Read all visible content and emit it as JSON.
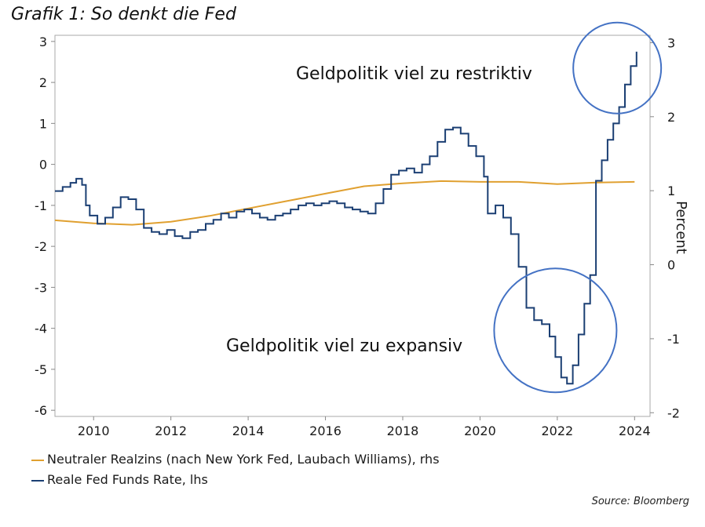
{
  "title": "Grafik 1: So denkt die Fed",
  "source": "Source: Bloomberg",
  "colors": {
    "neutral_rate": "#E0A030",
    "fed_funds": "#1B3F73",
    "circles": "#4472C4",
    "frame": "#aaaaaa"
  },
  "chart_data": {
    "type": "line",
    "x_ticks": [
      "2010",
      "2012",
      "2014",
      "2016",
      "2018",
      "2020",
      "2022",
      "2024"
    ],
    "x_tick_values": [
      2010,
      2012,
      2014,
      2016,
      2018,
      2020,
      2022,
      2024
    ],
    "xlim": [
      2009.0,
      2024.4
    ],
    "left_axis": {
      "ticks": [
        "3",
        "2",
        "1",
        "0",
        "-1",
        "-2",
        "-3",
        "-4",
        "-5",
        "-6"
      ],
      "tick_values": [
        3,
        2,
        1,
        0,
        -1,
        -2,
        -3,
        -4,
        -5,
        -6
      ],
      "ylim": [
        -6.15,
        3.15
      ]
    },
    "right_axis": {
      "label": "Percent",
      "ticks": [
        "3",
        "2",
        "1",
        "0",
        "-1",
        "-2"
      ],
      "tick_values": [
        3,
        2,
        1,
        0,
        -1,
        -2
      ],
      "ylim": [
        -2.05,
        3.1
      ]
    },
    "annotations": [
      "Geldpolitik viel zu restriktiv",
      "Geldpolitik viel zu expansiv"
    ],
    "series": [
      {
        "name": "Neutraler Realzins (nach New York Fed, Laubach Williams), rhs",
        "axis": "right",
        "x": [
          2009.0,
          2010.0,
          2011.0,
          2012.0,
          2013.0,
          2014.0,
          2015.0,
          2016.0,
          2017.0,
          2018.0,
          2019.0,
          2020.0,
          2021.0,
          2022.0,
          2023.0,
          2024.0
        ],
        "y": [
          0.6,
          0.56,
          0.54,
          0.58,
          0.66,
          0.76,
          0.86,
          0.96,
          1.06,
          1.1,
          1.13,
          1.12,
          1.12,
          1.09,
          1.11,
          1.12
        ]
      },
      {
        "name": "Reale Fed Funds Rate, lhs",
        "axis": "left",
        "x": [
          2009.0,
          2009.2,
          2009.4,
          2009.55,
          2009.7,
          2009.8,
          2009.9,
          2010.1,
          2010.3,
          2010.5,
          2010.7,
          2010.9,
          2011.1,
          2011.3,
          2011.5,
          2011.7,
          2011.9,
          2012.1,
          2012.3,
          2012.5,
          2012.7,
          2012.9,
          2013.1,
          2013.3,
          2013.5,
          2013.7,
          2013.9,
          2014.1,
          2014.3,
          2014.5,
          2014.7,
          2014.9,
          2015.1,
          2015.3,
          2015.5,
          2015.7,
          2015.9,
          2016.1,
          2016.3,
          2016.5,
          2016.7,
          2016.9,
          2017.1,
          2017.3,
          2017.5,
          2017.7,
          2017.9,
          2018.1,
          2018.3,
          2018.5,
          2018.7,
          2018.9,
          2019.1,
          2019.3,
          2019.5,
          2019.7,
          2019.9,
          2020.1,
          2020.2,
          2020.4,
          2020.6,
          2020.8,
          2021.0,
          2021.2,
          2021.4,
          2021.6,
          2021.8,
          2021.95,
          2022.1,
          2022.25,
          2022.4,
          2022.55,
          2022.7,
          2022.85,
          2023.0,
          2023.15,
          2023.3,
          2023.45,
          2023.6,
          2023.75,
          2023.9,
          2024.05
        ],
        "y": [
          -0.65,
          -0.55,
          -0.45,
          -0.35,
          -0.5,
          -1.0,
          -1.25,
          -1.45,
          -1.3,
          -1.05,
          -0.8,
          -0.85,
          -1.1,
          -1.55,
          -1.65,
          -1.7,
          -1.6,
          -1.75,
          -1.8,
          -1.65,
          -1.6,
          -1.45,
          -1.35,
          -1.2,
          -1.3,
          -1.15,
          -1.1,
          -1.2,
          -1.3,
          -1.35,
          -1.25,
          -1.2,
          -1.1,
          -1.0,
          -0.95,
          -1.0,
          -0.95,
          -0.9,
          -0.95,
          -1.05,
          -1.1,
          -1.15,
          -1.2,
          -0.95,
          -0.6,
          -0.25,
          -0.15,
          -0.1,
          -0.2,
          0.0,
          0.2,
          0.55,
          0.85,
          0.9,
          0.75,
          0.45,
          0.2,
          -0.3,
          -1.2,
          -1.0,
          -1.3,
          -1.7,
          -2.5,
          -3.5,
          -3.8,
          -3.9,
          -4.2,
          -4.7,
          -5.2,
          -5.35,
          -4.9,
          -4.15,
          -3.4,
          -2.7,
          -0.4,
          0.1,
          0.6,
          1.0,
          1.4,
          1.95,
          2.4,
          2.75
        ]
      }
    ]
  }
}
